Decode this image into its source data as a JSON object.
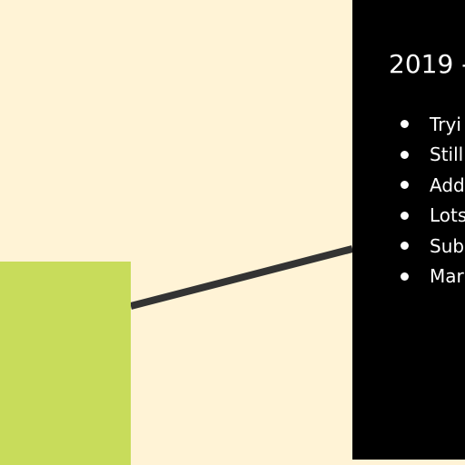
{
  "diagram": {
    "background_color": "#FFF3D6",
    "green_box_color": "#C8DC5B",
    "panel_color": "#000000",
    "connector_color": "#333333",
    "panel": {
      "title": "2019 -",
      "items": [
        "Tryi",
        "Still",
        "Add",
        "Lots",
        "Subr",
        "Mar"
      ]
    }
  }
}
